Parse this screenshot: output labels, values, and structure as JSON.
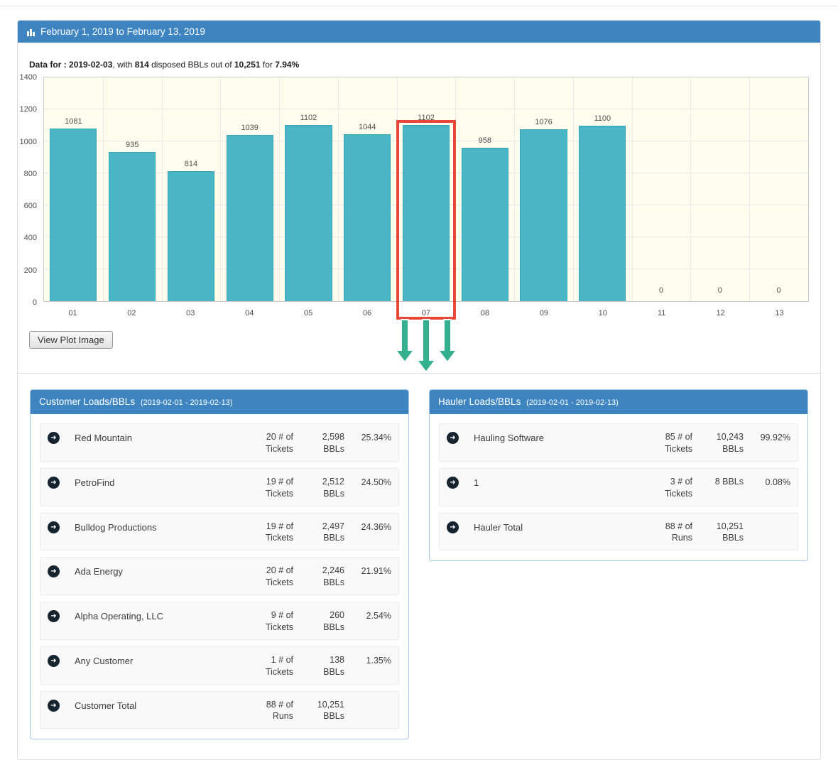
{
  "colors": {
    "header_blue": "#3d84c0",
    "bar_teal": "#4ab5c4",
    "highlight_red": "#e8473a",
    "arrow_green": "#35b08f",
    "plot_bg": "#fffdee"
  },
  "header": {
    "title": "February 1, 2019 to February 13, 2019"
  },
  "summary": {
    "label": "Data for : ",
    "date": "2019-02-03",
    "seg1": ", with ",
    "disposed_bbls": "814",
    "seg2": " disposed BBLs out of ",
    "total_bbls": "10,251",
    "seg3": " for ",
    "percent": "7.94%"
  },
  "chart_data": {
    "type": "bar",
    "categories": [
      "01",
      "02",
      "03",
      "04",
      "05",
      "06",
      "07",
      "08",
      "09",
      "10",
      "11",
      "12",
      "13"
    ],
    "values": [
      1081,
      935,
      814,
      1039,
      1102,
      1044,
      1102,
      958,
      1076,
      1100,
      0,
      0,
      0
    ],
    "highlighted_category": "07",
    "title": "",
    "xlabel": "",
    "ylabel": "",
    "ylim": [
      0,
      1400
    ],
    "yticks": [
      0,
      200,
      400,
      600,
      800,
      1000,
      1200,
      1400
    ],
    "grid": true,
    "legend": "none",
    "annotations": [
      "red box highlighting bar 07",
      "three green arrows pointing down at bar 07"
    ]
  },
  "buttons": {
    "view_plot_button": "View Plot Image"
  },
  "customer_panel": {
    "title": "Customer Loads/BBLs",
    "subtitle": "(2019-02-01 - 2019-02-13)",
    "rows": [
      {
        "name": "Red Mountain",
        "tickets": "20 # of",
        "tickets_label": "Tickets",
        "bbls": "2,598",
        "bbls_label": "BBLs",
        "percent": "25.34%"
      },
      {
        "name": "PetroFind",
        "tickets": "19 # of",
        "tickets_label": "Tickets",
        "bbls": "2,512",
        "bbls_label": "BBLs",
        "percent": "24.50%"
      },
      {
        "name": "Bulldog Productions",
        "tickets": "19 # of",
        "tickets_label": "Tickets",
        "bbls": "2,497",
        "bbls_label": "BBLs",
        "percent": "24.36%"
      },
      {
        "name": "Ada Energy",
        "tickets": "20 # of",
        "tickets_label": "Tickets",
        "bbls": "2,246",
        "bbls_label": "BBLs",
        "percent": "21.91%"
      },
      {
        "name": "Alpha Operating, LLC",
        "tickets": "9 # of",
        "tickets_label": "Tickets",
        "bbls": "260",
        "bbls_label": "BBLs",
        "percent": "2.54%"
      },
      {
        "name": "Any Customer",
        "tickets": "1 # of",
        "tickets_label": "Tickets",
        "bbls": "138",
        "bbls_label": "BBLs",
        "percent": "1.35%"
      },
      {
        "name": "Customer Total",
        "tickets": "88 # of",
        "tickets_label": "Runs",
        "bbls": "10,251",
        "bbls_label": "BBLs",
        "percent": ""
      }
    ]
  },
  "hauler_panel": {
    "title": "Hauler Loads/BBLs",
    "subtitle": "(2019-02-01 - 2019-02-13)",
    "rows": [
      {
        "name": "Hauling Software",
        "tickets": "85 # of",
        "tickets_label": "Tickets",
        "bbls": "10,243",
        "bbls_label": "BBLs",
        "percent": "99.92%"
      },
      {
        "name": "1",
        "tickets": "3 # of",
        "tickets_label": "Tickets",
        "bbls": "8 BBLs",
        "bbls_label": "",
        "percent": "0.08%"
      },
      {
        "name": "Hauler Total",
        "tickets": "88 # of",
        "tickets_label": "Runs",
        "bbls": "10,251",
        "bbls_label": "BBLs",
        "percent": ""
      }
    ]
  }
}
